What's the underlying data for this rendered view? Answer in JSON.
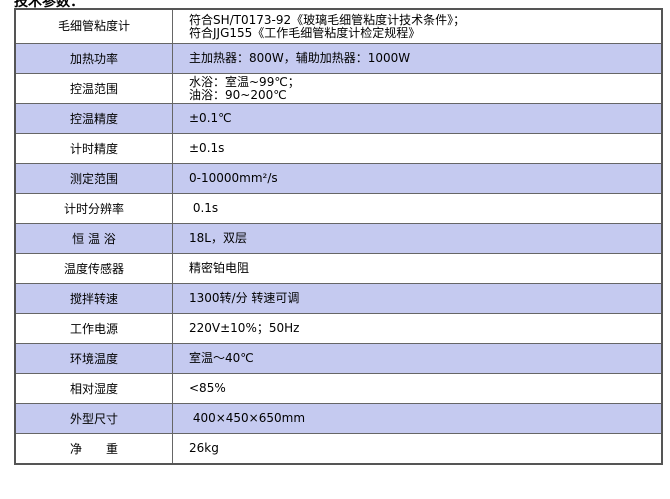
{
  "heading": "技术参数：",
  "colors": {
    "alt_row": "#c5caf0",
    "row": "#ffffff"
  },
  "rows": [
    {
      "label": "毛细管粘度计",
      "value": [
        "符合SH/T0173-92《玻璃毛细管粘度计技术条件》；",
        "符合JJG155《工作毛细管粘度计检定规程》"
      ]
    },
    {
      "label": "加热功率",
      "value": [
        "主加热器：800W，辅助加热器：1000W"
      ]
    },
    {
      "label": "控温范围",
      "value": [
        "水浴：室温~99℃；",
        "油浴：90~200℃"
      ]
    },
    {
      "label": "控温精度",
      "value": [
        "±0.1℃"
      ]
    },
    {
      "label": "计时精度",
      "value": [
        "±0.1s"
      ]
    },
    {
      "label": "测定范围",
      "value": [
        "0-10000mm²/s"
      ]
    },
    {
      "label": "计时分辨率",
      "value": [
        " 0.1s"
      ]
    },
    {
      "label": "恒 温 浴",
      "value": [
        "18L，双层"
      ]
    },
    {
      "label": "温度传感器",
      "value": [
        "精密铂电阻"
      ]
    },
    {
      "label": "搅拌转速",
      "value": [
        "1300转/分 转速可调"
      ]
    },
    {
      "label": "工作电源",
      "value": [
        "220V±10%；50Hz"
      ]
    },
    {
      "label": "环境温度",
      "value": [
        "室温～40℃"
      ]
    },
    {
      "label": "相对湿度",
      "value": [
        "<85%"
      ]
    },
    {
      "label": "外型尺寸",
      "value": [
        " 400×450×650mm"
      ]
    },
    {
      "label": "净　　重",
      "value": [
        "26kg"
      ]
    }
  ]
}
